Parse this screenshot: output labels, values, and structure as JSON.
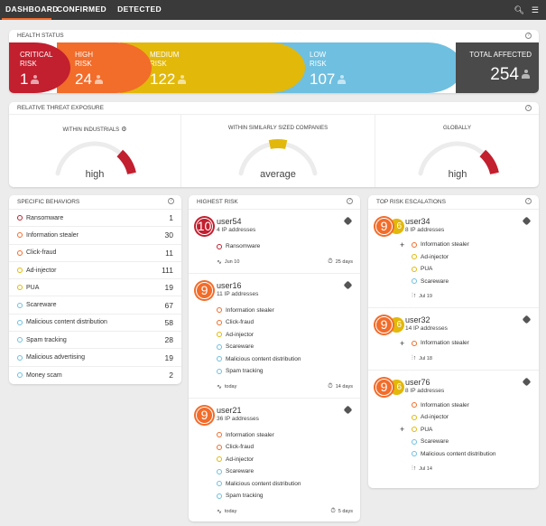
{
  "colors": {
    "critical": "#c21f2f",
    "high": "#f26c2a",
    "medium": "#e2b80a",
    "low": "#6fbfe0",
    "total": "#4a4a4a",
    "accent": "#f26c2a"
  },
  "nav": {
    "tabs": [
      {
        "label": "DASHBOARD",
        "active": true
      },
      {
        "label": "CONFIRMED"
      },
      {
        "label": "DETECTED"
      }
    ],
    "icons": [
      "search-icon",
      "menu-icon"
    ]
  },
  "health": {
    "title": "HEALTH STATUS",
    "segments": [
      {
        "label1": "CRITICAL",
        "label2": "RISK",
        "value": "1",
        "level": "critical"
      },
      {
        "label1": "HIGH",
        "label2": "RISK",
        "value": "24",
        "level": "high"
      },
      {
        "label1": "MEDIUM",
        "label2": "RISK",
        "value": "122",
        "level": "medium"
      },
      {
        "label1": "LOW",
        "label2": "RISK",
        "value": "107",
        "level": "low"
      }
    ],
    "total_label": "TOTAL AFFECTED",
    "total_value": "254"
  },
  "exposure": {
    "title": "RELATIVE THREAT EXPOSURE",
    "gauges": [
      {
        "title": "WITHIN INDUSTRIALS",
        "value": "high",
        "level": "high",
        "has_gear": true
      },
      {
        "title": "WITHIN SIMILARLY SIZED COMPANIES",
        "value": "average",
        "level": "average"
      },
      {
        "title": "GLOBALLY",
        "value": "high",
        "level": "high"
      }
    ]
  },
  "behaviors": {
    "title": "SPECIFIC BEHAVIORS",
    "items": [
      {
        "label": "Ransomware",
        "count": "1",
        "sev": "critical"
      },
      {
        "label": "Information stealer",
        "count": "30",
        "sev": "high"
      },
      {
        "label": "Click-fraud",
        "count": "11",
        "sev": "high"
      },
      {
        "label": "Ad-injector",
        "count": "111",
        "sev": "medium"
      },
      {
        "label": "PUA",
        "count": "19",
        "sev": "medium"
      },
      {
        "label": "Scareware",
        "count": "67",
        "sev": "low"
      },
      {
        "label": "Malicious content distribution",
        "count": "58",
        "sev": "low"
      },
      {
        "label": "Spam tracking",
        "count": "28",
        "sev": "low"
      },
      {
        "label": "Malicious advertising",
        "count": "19",
        "sev": "low"
      },
      {
        "label": "Money scam",
        "count": "2",
        "sev": "low"
      }
    ]
  },
  "highest_risk": {
    "title": "HIGHEST RISK",
    "users": [
      {
        "score": "10",
        "sev": "critical",
        "name": "user54",
        "ips": "4 IP addresses",
        "behaviors": [
          {
            "label": "Ransomware",
            "sev": "critical"
          }
        ],
        "date": "Jun 10",
        "duration": "25 days"
      },
      {
        "score": "9",
        "sev": "high",
        "name": "user16",
        "ips": "11 IP addresses",
        "behaviors": [
          {
            "label": "Information stealer",
            "sev": "high"
          },
          {
            "label": "Click-fraud",
            "sev": "high"
          },
          {
            "label": "Ad-injector",
            "sev": "medium"
          },
          {
            "label": "Scareware",
            "sev": "low"
          },
          {
            "label": "Malicious content distribution",
            "sev": "low"
          },
          {
            "label": "Spam tracking",
            "sev": "low"
          }
        ],
        "date": "today",
        "duration": "14 days"
      },
      {
        "score": "9",
        "sev": "high",
        "name": "user21",
        "ips": "36 IP addresses",
        "behaviors": [
          {
            "label": "Information stealer",
            "sev": "high"
          },
          {
            "label": "Click-fraud",
            "sev": "high"
          },
          {
            "label": "Ad-injector",
            "sev": "medium"
          },
          {
            "label": "Scareware",
            "sev": "low"
          },
          {
            "label": "Malicious content distribution",
            "sev": "low"
          },
          {
            "label": "Spam tracking",
            "sev": "low"
          }
        ],
        "date": "today",
        "duration": "5 days"
      }
    ]
  },
  "escalations": {
    "title": "TOP RISK ESCALATIONS",
    "users": [
      {
        "score": "9",
        "prev": "6",
        "sev": "high",
        "name": "user34",
        "ips": "8 IP addresses",
        "behaviors": [
          {
            "label": "Information stealer",
            "sev": "high",
            "new": true
          },
          {
            "label": "Ad-injector",
            "sev": "medium"
          },
          {
            "label": "PUA",
            "sev": "medium"
          },
          {
            "label": "Scareware",
            "sev": "low"
          }
        ],
        "date": "Jul 19"
      },
      {
        "score": "9",
        "prev": "6",
        "sev": "high",
        "name": "user32",
        "ips": "14 IP addresses",
        "behaviors": [
          {
            "label": "Information stealer",
            "sev": "high",
            "new": true
          }
        ],
        "date": "Jul 18"
      },
      {
        "score": "9",
        "prev": "6",
        "sev": "high",
        "name": "user76",
        "ips": "8 IP addresses",
        "behaviors": [
          {
            "label": "Information stealer",
            "sev": "high"
          },
          {
            "label": "Ad-injector",
            "sev": "medium"
          },
          {
            "label": "PUA",
            "sev": "medium",
            "new": true
          },
          {
            "label": "Scareware",
            "sev": "low"
          },
          {
            "label": "Malicious content distribution",
            "sev": "low"
          }
        ],
        "date": "Jul 14"
      }
    ]
  }
}
